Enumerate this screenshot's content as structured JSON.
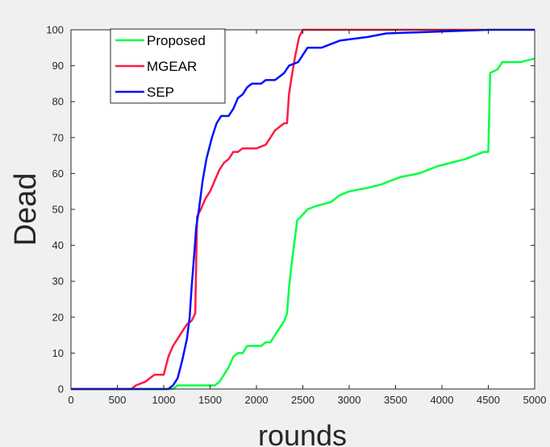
{
  "chart_data": {
    "type": "line",
    "xlabel": "rounds",
    "ylabel": "Dead",
    "xlim": [
      0,
      5000
    ],
    "ylim": [
      0,
      100
    ],
    "x_ticks": [
      0,
      500,
      1000,
      1500,
      2000,
      2500,
      3000,
      3500,
      4000,
      4500,
      5000
    ],
    "y_ticks": [
      0,
      10,
      20,
      30,
      40,
      50,
      60,
      70,
      80,
      90,
      100
    ],
    "grid": false,
    "legend_position": "top-left",
    "series": [
      {
        "name": "Proposed",
        "color": "#00ff40",
        "points": [
          [
            0,
            0
          ],
          [
            1100,
            0
          ],
          [
            1150,
            1
          ],
          [
            1550,
            1
          ],
          [
            1600,
            2
          ],
          [
            1650,
            4
          ],
          [
            1700,
            6
          ],
          [
            1750,
            9
          ],
          [
            1800,
            10
          ],
          [
            1850,
            10
          ],
          [
            1900,
            12
          ],
          [
            2050,
            12
          ],
          [
            2100,
            13
          ],
          [
            2150,
            13
          ],
          [
            2200,
            15
          ],
          [
            2250,
            17
          ],
          [
            2300,
            19
          ],
          [
            2330,
            21
          ],
          [
            2350,
            28
          ],
          [
            2380,
            35
          ],
          [
            2410,
            41
          ],
          [
            2440,
            47
          ],
          [
            2480,
            48
          ],
          [
            2550,
            50
          ],
          [
            2650,
            51
          ],
          [
            2800,
            52
          ],
          [
            2900,
            54
          ],
          [
            3000,
            55
          ],
          [
            3200,
            56
          ],
          [
            3350,
            57
          ],
          [
            3450,
            58
          ],
          [
            3550,
            59
          ],
          [
            3750,
            60
          ],
          [
            3850,
            61
          ],
          [
            3950,
            62
          ],
          [
            4100,
            63
          ],
          [
            4250,
            64
          ],
          [
            4350,
            65
          ],
          [
            4450,
            66
          ],
          [
            4500,
            66
          ],
          [
            4520,
            88
          ],
          [
            4600,
            89
          ],
          [
            4650,
            91
          ],
          [
            4850,
            91
          ],
          [
            5000,
            92
          ]
        ]
      },
      {
        "name": "MGEAR",
        "color": "#ff1a40",
        "points": [
          [
            0,
            0
          ],
          [
            650,
            0
          ],
          [
            700,
            1
          ],
          [
            800,
            2
          ],
          [
            850,
            3
          ],
          [
            900,
            4
          ],
          [
            1000,
            4
          ],
          [
            1050,
            9
          ],
          [
            1100,
            12
          ],
          [
            1150,
            14
          ],
          [
            1200,
            16
          ],
          [
            1250,
            18
          ],
          [
            1300,
            19
          ],
          [
            1340,
            21
          ],
          [
            1360,
            48
          ],
          [
            1400,
            50
          ],
          [
            1450,
            53
          ],
          [
            1500,
            55
          ],
          [
            1550,
            58
          ],
          [
            1600,
            61
          ],
          [
            1650,
            63
          ],
          [
            1700,
            64
          ],
          [
            1750,
            66
          ],
          [
            1800,
            66
          ],
          [
            1850,
            67
          ],
          [
            2000,
            67
          ],
          [
            2100,
            68
          ],
          [
            2150,
            70
          ],
          [
            2200,
            72
          ],
          [
            2250,
            73
          ],
          [
            2300,
            74
          ],
          [
            2330,
            74
          ],
          [
            2350,
            82
          ],
          [
            2380,
            87
          ],
          [
            2420,
            93
          ],
          [
            2460,
            98
          ],
          [
            2500,
            100
          ],
          [
            4450,
            100
          ]
        ]
      },
      {
        "name": "SEP",
        "color": "#0010ff",
        "points": [
          [
            0,
            0
          ],
          [
            1050,
            0
          ],
          [
            1100,
            1
          ],
          [
            1150,
            3
          ],
          [
            1200,
            8
          ],
          [
            1250,
            14
          ],
          [
            1280,
            20
          ],
          [
            1300,
            28
          ],
          [
            1330,
            38
          ],
          [
            1350,
            45
          ],
          [
            1380,
            50
          ],
          [
            1420,
            58
          ],
          [
            1460,
            64
          ],
          [
            1520,
            70
          ],
          [
            1570,
            74
          ],
          [
            1620,
            76
          ],
          [
            1700,
            76
          ],
          [
            1750,
            78
          ],
          [
            1800,
            81
          ],
          [
            1850,
            82
          ],
          [
            1900,
            84
          ],
          [
            1950,
            85
          ],
          [
            2050,
            85
          ],
          [
            2100,
            86
          ],
          [
            2200,
            86
          ],
          [
            2250,
            87
          ],
          [
            2300,
            88
          ],
          [
            2350,
            90
          ],
          [
            2450,
            91
          ],
          [
            2550,
            95
          ],
          [
            2700,
            95
          ],
          [
            2800,
            96
          ],
          [
            2900,
            97
          ],
          [
            3200,
            98
          ],
          [
            3400,
            99
          ],
          [
            4500,
            100
          ],
          [
            5000,
            100
          ]
        ]
      }
    ]
  }
}
